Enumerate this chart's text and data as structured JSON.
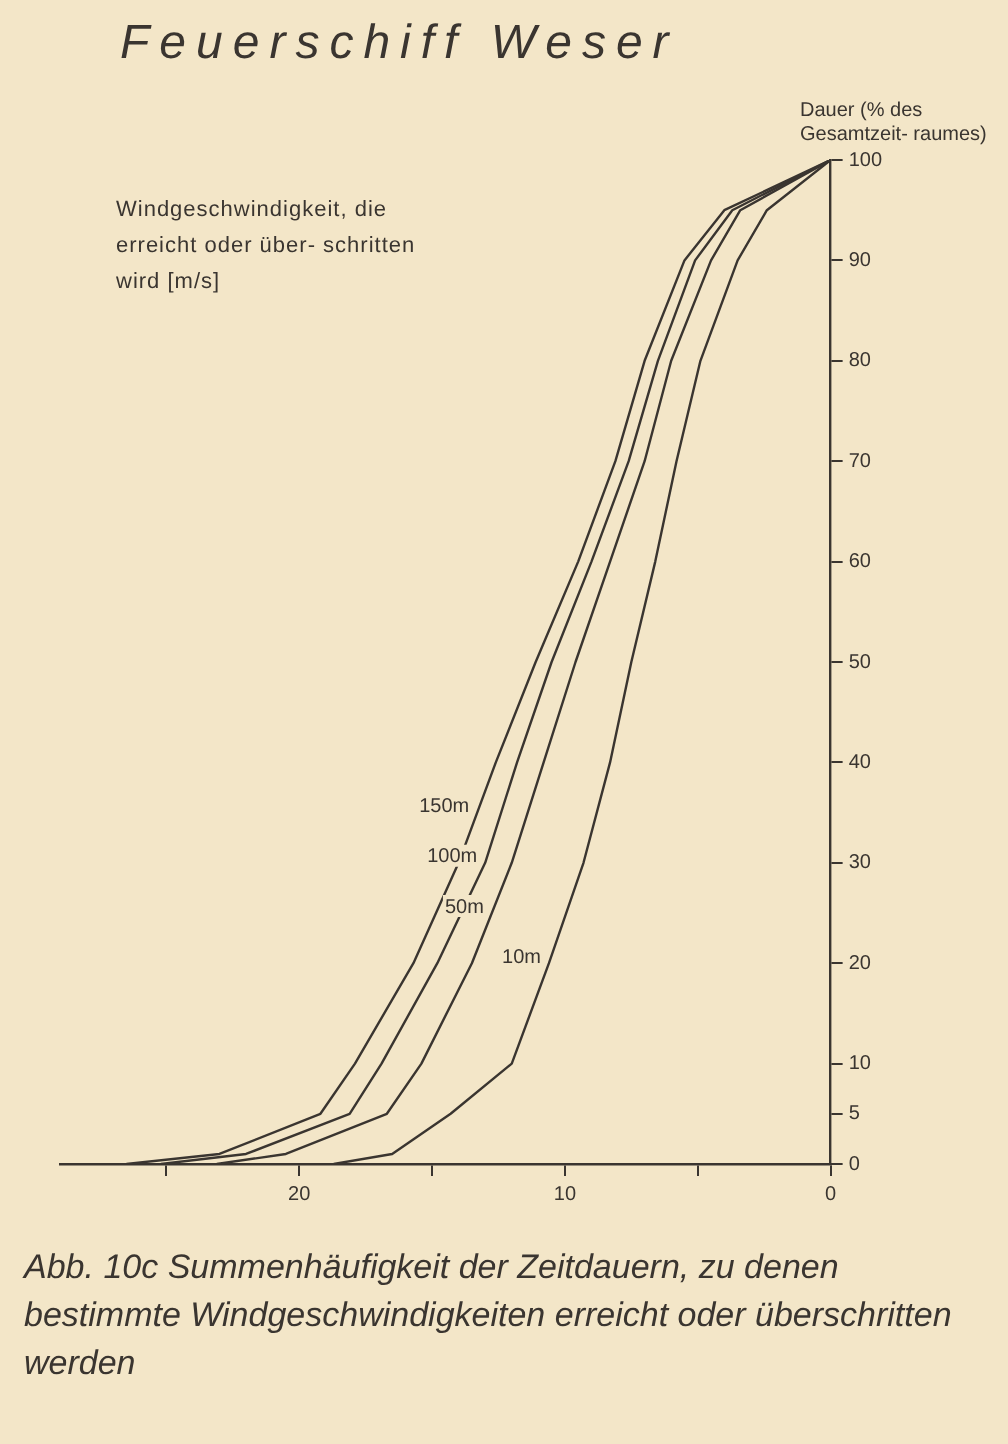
{
  "chart_data": {
    "type": "line",
    "title": "Feuerschiff Weser",
    "xlabel": "Windgeschwindigkeit, die erreicht oder über- schritten wird [m/s]",
    "ylabel": "Dauer (% des Gesamtzeit- raumes)",
    "annotations": [
      "Abb. 10c Summenhäufigkeit der Zeitdauern, zu denen bestimmte Windgeschwindigkeiten erreicht oder überschritten werden"
    ],
    "series": [
      {
        "name": "150m",
        "color": "#3a3530",
        "x": [
          26.5,
          23,
          19.2,
          17.9,
          15.7,
          14.0,
          12.6,
          11.1,
          9.5,
          8.1,
          7.0,
          5.5,
          4.0,
          0
        ],
        "values": [
          0,
          1,
          5,
          10,
          20,
          30,
          40,
          50,
          60,
          70,
          80,
          90,
          95,
          100
        ]
      },
      {
        "name": "100m",
        "color": "#3a3530",
        "x": [
          25.2,
          22,
          18.1,
          16.9,
          14.8,
          13.0,
          11.8,
          10.5,
          9.0,
          7.6,
          6.5,
          5.1,
          3.7,
          0
        ],
        "values": [
          0,
          1,
          5,
          10,
          20,
          30,
          40,
          50,
          60,
          70,
          80,
          90,
          95,
          100
        ]
      },
      {
        "name": "50m",
        "color": "#3a3530",
        "x": [
          23.1,
          20.5,
          16.7,
          15.4,
          13.5,
          12.0,
          10.8,
          9.6,
          8.3,
          7.0,
          6.0,
          4.5,
          3.4,
          0
        ],
        "values": [
          0,
          1,
          5,
          10,
          20,
          30,
          40,
          50,
          60,
          70,
          80,
          90,
          95,
          100
        ]
      },
      {
        "name": "10m",
        "color": "#3a3530",
        "x": [
          18.7,
          16.5,
          14.3,
          12.0,
          10.6,
          9.3,
          8.3,
          7.5,
          6.6,
          5.8,
          4.9,
          3.5,
          2.4,
          0
        ],
        "values": [
          0,
          1,
          5,
          10,
          20,
          30,
          40,
          50,
          60,
          70,
          80,
          90,
          95,
          100
        ]
      }
    ],
    "xlim": [
      29,
      0
    ],
    "xticks": [
      0,
      {
        "value": 5,
        "label": null
      },
      10,
      {
        "value": 15,
        "label": null
      },
      20,
      {
        "value": 25,
        "label": null
      }
    ],
    "ylim": [
      0,
      100
    ],
    "yticks": [
      0,
      5,
      10,
      20,
      30,
      40,
      50,
      60,
      70,
      80,
      90,
      100
    ],
    "grid": false,
    "legend": false,
    "marker": "none",
    "line_style": "solid"
  }
}
